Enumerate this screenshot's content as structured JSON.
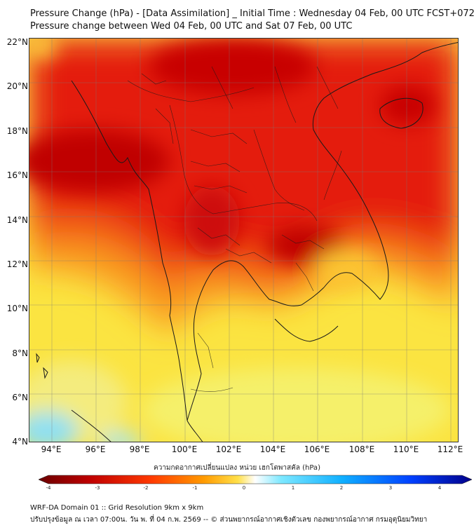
{
  "header": {
    "title_line1": "Pressure Change (hPa) - [Data Assimilation] _ Initial Time : Wednesday 04 Feb, 00 UTC FCST+072",
    "title_line2": "Pressure change between Wed 04 Feb, 00 UTC and Sat 07 Feb, 00 UTC"
  },
  "map": {
    "lat_labels": [
      "22°N",
      "20°N",
      "18°N",
      "16°N",
      "14°N",
      "12°N",
      "10°N",
      "8°N",
      "6°N",
      "4°N"
    ],
    "lon_labels": [
      "94°E",
      "96°E",
      "98°E",
      "100°E",
      "102°E",
      "104°E",
      "106°E",
      "108°E",
      "110°E",
      "112°E"
    ],
    "field_colors": {
      "dark_red": "#c00000",
      "red": "#e41a0e",
      "orange_red": "#f25a14",
      "orange": "#f99b22",
      "yellow_orange": "#fcc431",
      "yellow": "#fbe441",
      "light_yellow": "#f5f06a",
      "light_blue": "#8fe0f2",
      "cyan": "#5cd2f0"
    }
  },
  "colorbar": {
    "title": "ความกดอากาศเปลี่ยนแปลง หน่วย เฮกโตพาสคัล (hPa)",
    "ticks": [
      "-4",
      "-3",
      "-2",
      "-1",
      "0",
      "1",
      "2",
      "3",
      "4"
    ],
    "colors": [
      "#6a0000",
      "#c00000",
      "#ff3a00",
      "#ff9a00",
      "#ffe04a",
      "#ffffff",
      "#7de8ff",
      "#10b0ff",
      "#0040ff",
      "#00008a"
    ]
  },
  "footer": {
    "line1": "WRF-DA Domain 01 :: Grid Resolution 9km x 9km",
    "line2": "ปรับปรุงข้อมูล ณ เวลา 07:00น. วัน พ. ที่ 04 ก.พ. 2569 -- © ส่วนพยากรณ์อากาศเชิงตัวเลข กองพยากรณ์อากาศ กรมอุตุนิยมวิทยา"
  }
}
